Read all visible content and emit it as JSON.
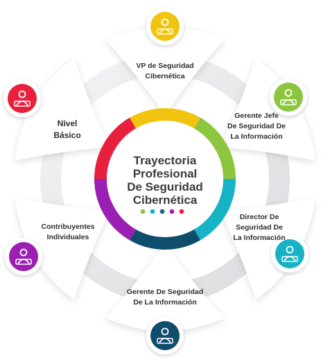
{
  "title_lines": [
    "Trayectoria",
    "Profesional",
    "De Seguridad",
    "Cibernética"
  ],
  "roles": [
    {
      "lines": [
        "VP de Seguridad",
        "Cibernética"
      ],
      "icon": "presenter-icon",
      "color": "#f1c40f"
    },
    {
      "lines": [
        "Gerente Jefe",
        "De Seguridad De",
        "La Información"
      ],
      "icon": "analyst-computer-icon",
      "color": "#8cc63f"
    },
    {
      "lines": [
        "Director De",
        "Seguridad De",
        "La Información"
      ],
      "icon": "headset-operator-icon",
      "color": "#16b3c4"
    },
    {
      "lines": [
        "Gerente De Seguridad",
        "De La Información"
      ],
      "icon": "process-management-icon",
      "color": "#0e4d6b"
    },
    {
      "lines": [
        "Contribuyentes",
        "Individuales"
      ],
      "icon": "growth-board-icon",
      "color": "#9b1fb2"
    },
    {
      "lines": [
        "Nivel",
        "Básico"
      ],
      "icon": "hacker-alert-icon",
      "color": "#e8203d"
    }
  ],
  "dot_colors": [
    "#8cc63f",
    "#16b3c4",
    "#1f5f8a",
    "#9b1fb2",
    "#e8203d"
  ]
}
